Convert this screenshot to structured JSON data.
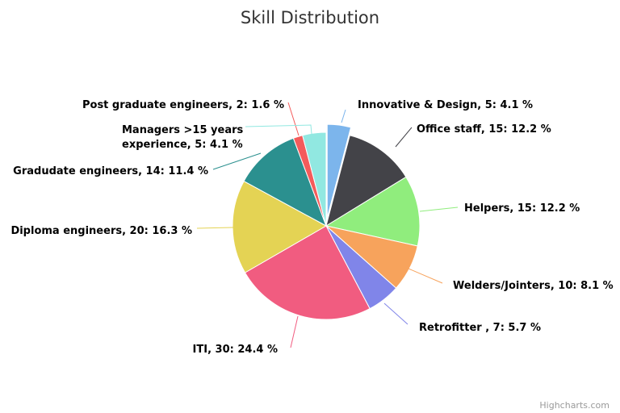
{
  "chart_data": {
    "type": "pie",
    "title": "Skill Distribution",
    "credits": "Highcharts.com",
    "label_format": "{name}, {value}: {pct} %",
    "series": [
      {
        "name": "Innovative & Design",
        "value": 5,
        "pct": "4.1",
        "color": "#7cb5ec",
        "sliced": true
      },
      {
        "name": "Office staff",
        "value": 15,
        "pct": "12.2",
        "color": "#434348"
      },
      {
        "name": "Helpers",
        "value": 15,
        "pct": "12.2",
        "color": "#90ed7d"
      },
      {
        "name": "Welders/Jointers",
        "value": 10,
        "pct": "8.1",
        "color": "#f7a35c"
      },
      {
        "name": "Retrofitter ",
        "value": 7,
        "pct": "5.7",
        "color": "#8085e9"
      },
      {
        "name": "ITI",
        "value": 30,
        "pct": "24.4",
        "color": "#f15c80"
      },
      {
        "name": "Diploma engineers",
        "value": 20,
        "pct": "16.3",
        "color": "#e4d354"
      },
      {
        "name": "Gradudate engineers",
        "value": 14,
        "pct": "11.4",
        "color": "#2b908f"
      },
      {
        "name": "Post graduate engineers",
        "value": 2,
        "pct": "1.6",
        "color": "#f45b5b"
      },
      {
        "name": "Managers >15 years experience",
        "value": 5,
        "pct": "4.1",
        "color": "#91e8e1",
        "label_lines": [
          "Managers >15 years",
          "experience, 5: 4.1 %"
        ]
      }
    ]
  }
}
